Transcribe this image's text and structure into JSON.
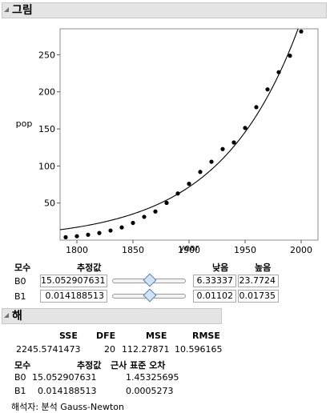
{
  "graph_section": {
    "title": "그림"
  },
  "chart_data": {
    "type": "scatter",
    "xlabel": "year",
    "ylabel": "pop",
    "xlim": [
      1785,
      2015
    ],
    "ylim": [
      0,
      285
    ],
    "x_ticks": [
      "1800",
      "1850",
      "1900",
      "1950",
      "2000"
    ],
    "y_ticks": [
      "50",
      "100",
      "150",
      "200",
      "250"
    ],
    "x_tick_values": [
      1800,
      1850,
      1900,
      1950,
      2000
    ],
    "y_tick_values": [
      50,
      100,
      150,
      200,
      250
    ],
    "points_x": [
      1790,
      1800,
      1810,
      1820,
      1830,
      1840,
      1850,
      1860,
      1870,
      1880,
      1890,
      1900,
      1910,
      1920,
      1930,
      1940,
      1950,
      1960,
      1970,
      1980,
      1990,
      2000
    ],
    "points_y": [
      3.9,
      5.3,
      7.2,
      9.6,
      12.9,
      17.1,
      23.2,
      31.4,
      38.6,
      50.2,
      62.9,
      76.0,
      92.0,
      105.7,
      122.8,
      131.7,
      151.3,
      179.3,
      203.3,
      226.5,
      248.7,
      281.4
    ],
    "fit_curve": {
      "b0": 15.052907631,
      "b1": 0.014188513,
      "x0": 1790
    }
  },
  "params": {
    "col_param": "모수",
    "col_estimate": "추정값",
    "col_low": "낮음",
    "col_high": "높음",
    "rows": [
      {
        "name": "B0",
        "estimate": "15.052907631",
        "low": "6.33337",
        "high": "23.7724",
        "slider_pos": 0.5
      },
      {
        "name": "B1",
        "estimate": "0.014188513",
        "low": "0.01102",
        "high": "0.01735",
        "slider_pos": 0.5
      }
    ]
  },
  "solution_section": {
    "title": "해"
  },
  "stats": {
    "headers": [
      "SSE",
      "DFE",
      "MSE",
      "RMSE"
    ],
    "values": [
      "2245.5741473",
      "20",
      "112.27871",
      "10.596165"
    ]
  },
  "estimates": {
    "col_param": "모수",
    "col_estimate": "추정값",
    "col_se": "근사 표준 오차",
    "rows": [
      {
        "name": "B0",
        "estimate": "15.052907631",
        "se": "1.45325695"
      },
      {
        "name": "B1",
        "estimate": "0.014188513",
        "se": "0.0005273"
      }
    ]
  },
  "solver": {
    "text": "해석자: 분석 Gauss-Newton"
  }
}
